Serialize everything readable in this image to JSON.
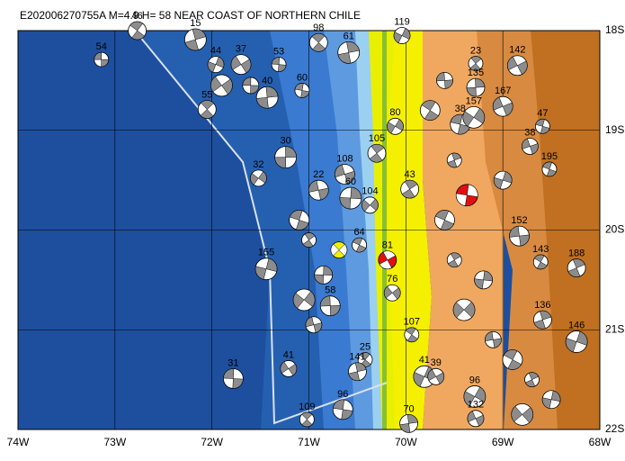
{
  "map": {
    "title": "E202006270755A  M=4.9  H= 58  NEAR COAST OF NORTHERN CHILE",
    "xlim": [
      -74,
      -68
    ],
    "ylim": [
      -22,
      -18
    ],
    "xticks": [
      {
        "value": -74,
        "label": "74W"
      },
      {
        "value": -73,
        "label": "73W"
      },
      {
        "value": -72,
        "label": "72W"
      },
      {
        "value": -71,
        "label": "71W"
      },
      {
        "value": -70,
        "label": "70W"
      },
      {
        "value": -69,
        "label": "69W"
      },
      {
        "value": -68,
        "label": "68W"
      }
    ],
    "yticks": [
      {
        "value": -18,
        "label": "18S"
      },
      {
        "value": -19,
        "label": "19S"
      },
      {
        "value": -20,
        "label": "20S"
      },
      {
        "value": -21,
        "label": "21S"
      },
      {
        "value": -22,
        "label": "22S"
      }
    ],
    "events": [
      {
        "label": "54",
        "lon": -73.14,
        "lat": -18.29,
        "color": "#ffffff"
      },
      {
        "label": "46",
        "lon": -72.77,
        "lat": -18.0,
        "color": "#ffffff"
      },
      {
        "label": "15",
        "lon": -72.17,
        "lat": -18.09,
        "color": "#ffffff"
      },
      {
        "label": "44",
        "lon": -71.96,
        "lat": -18.34,
        "color": "#ffffff"
      },
      {
        "label": "37",
        "lon": -71.7,
        "lat": -18.34,
        "color": "#ffffff"
      },
      {
        "label": "53",
        "lon": -71.31,
        "lat": -18.34,
        "color": "#ffffff"
      },
      {
        "label": "98",
        "lon": -70.9,
        "lat": -18.12,
        "color": "#ffffff"
      },
      {
        "label": "61",
        "lon": -70.59,
        "lat": -18.22,
        "color": "#ffffff"
      },
      {
        "label": "119",
        "lon": -70.04,
        "lat": -18.05,
        "color": "#ffffff"
      },
      {
        "label": "142",
        "lon": -68.85,
        "lat": -18.35,
        "color": "#ffffff"
      },
      {
        "label": "60",
        "lon": -71.07,
        "lat": -18.6,
        "color": "#ffffff"
      },
      {
        "label": "55",
        "lon": -72.05,
        "lat": -18.79,
        "color": "#ffffff"
      },
      {
        "label": "40",
        "lon": -71.43,
        "lat": -18.67,
        "color": "#ffffff"
      },
      {
        "label": "80",
        "lon": -70.11,
        "lat": -18.96,
        "color": "#ffffff"
      },
      {
        "label": "167",
        "lon": -69.0,
        "lat": -18.76,
        "color": "#ffffff"
      },
      {
        "label": "47",
        "lon": -68.59,
        "lat": -18.96,
        "color": "#ffffff"
      },
      {
        "label": "105",
        "lon": -70.3,
        "lat": -19.23,
        "color": "#ffffff"
      },
      {
        "label": "30",
        "lon": -71.24,
        "lat": -19.27,
        "color": "#ffffff"
      },
      {
        "label": "32",
        "lon": -71.52,
        "lat": -19.48,
        "color": "#ffffff"
      },
      {
        "label": "108",
        "lon": -70.63,
        "lat": -19.44,
        "color": "#ffffff"
      },
      {
        "label": "195",
        "lon": -68.52,
        "lat": -19.39,
        "color": "#ffffff"
      },
      {
        "label": "43",
        "lon": -69.96,
        "lat": -19.59,
        "color": "#ffffff"
      },
      {
        "label": "60",
        "lon": -70.57,
        "lat": -19.68,
        "color": "#ffffff"
      },
      {
        "label": "104",
        "lon": -70.37,
        "lat": -19.75,
        "color": "#ffffff"
      },
      {
        "label": "22",
        "lon": -70.9,
        "lat": -19.6,
        "color": "#ffffff"
      },
      {
        "label": "64",
        "lon": -70.48,
        "lat": -20.15,
        "color": "#ffffff"
      },
      {
        "label": "81",
        "lon": -70.19,
        "lat": -20.3,
        "color": "#e01010"
      },
      {
        "label": null,
        "lon": -69.37,
        "lat": -19.65,
        "color": "#e01010"
      },
      {
        "label": null,
        "lon": -70.69,
        "lat": -20.2,
        "color": "#f0f000"
      },
      {
        "label": "152",
        "lon": -68.83,
        "lat": -20.06,
        "color": "#ffffff"
      },
      {
        "label": "143",
        "lon": -68.61,
        "lat": -20.32,
        "color": "#ffffff"
      },
      {
        "label": "188",
        "lon": -68.24,
        "lat": -20.38,
        "color": "#ffffff"
      },
      {
        "label": "155",
        "lon": -71.44,
        "lat": -20.39,
        "color": "#ffffff"
      },
      {
        "label": "76",
        "lon": -70.14,
        "lat": -20.63,
        "color": "#ffffff"
      },
      {
        "label": "58",
        "lon": -70.78,
        "lat": -20.76,
        "color": "#ffffff"
      },
      {
        "label": "107",
        "lon": -69.94,
        "lat": -21.05,
        "color": "#ffffff"
      },
      {
        "label": "136",
        "lon": -68.59,
        "lat": -20.9,
        "color": "#ffffff"
      },
      {
        "label": "146",
        "lon": -68.24,
        "lat": -21.12,
        "color": "#ffffff"
      },
      {
        "label": "41",
        "lon": -71.21,
        "lat": -21.39,
        "color": "#ffffff"
      },
      {
        "label": "31",
        "lon": -71.78,
        "lat": -21.49,
        "color": "#ffffff"
      },
      {
        "label": "25",
        "lon": -70.42,
        "lat": -21.3,
        "color": "#ffffff"
      },
      {
        "label": "141",
        "lon": -70.5,
        "lat": -21.42,
        "color": "#ffffff"
      },
      {
        "label": "41",
        "lon": -69.81,
        "lat": -21.47,
        "color": "#ffffff"
      },
      {
        "label": "39",
        "lon": -69.69,
        "lat": -21.47,
        "color": "#ffffff"
      },
      {
        "label": "96",
        "lon": -70.65,
        "lat": -21.8,
        "color": "#ffffff"
      },
      {
        "label": "109",
        "lon": -71.02,
        "lat": -21.9,
        "color": "#ffffff"
      },
      {
        "label": "70",
        "lon": -69.97,
        "lat": -21.94,
        "color": "#ffffff"
      },
      {
        "label": "96",
        "lon": -69.29,
        "lat": -21.67,
        "color": "#ffffff"
      },
      {
        "label": "132",
        "lon": -69.28,
        "lat": -21.89,
        "color": "#ffffff"
      },
      {
        "label": "38",
        "lon": -69.44,
        "lat": -18.94,
        "color": "#ffffff"
      },
      {
        "label": "23",
        "lon": -69.28,
        "lat": -18.33,
        "color": "#ffffff"
      },
      {
        "label": "135",
        "lon": -69.28,
        "lat": -18.57,
        "color": "#ffffff"
      },
      {
        "label": "157",
        "lon": -69.3,
        "lat": -18.87,
        "color": "#ffffff"
      },
      {
        "label": "38",
        "lon": -68.72,
        "lat": -19.16,
        "color": "#ffffff"
      },
      {
        "label": null,
        "lon": -71.1,
        "lat": -19.9,
        "color": "#ffffff"
      },
      {
        "label": null,
        "lon": -71.0,
        "lat": -20.1,
        "color": "#ffffff"
      },
      {
        "label": null,
        "lon": -70.85,
        "lat": -20.45,
        "color": "#ffffff"
      },
      {
        "label": null,
        "lon": -71.05,
        "lat": -20.7,
        "color": "#ffffff"
      },
      {
        "label": null,
        "lon": -70.95,
        "lat": -20.95,
        "color": "#ffffff"
      },
      {
        "label": null,
        "lon": -69.6,
        "lat": -19.9,
        "color": "#ffffff"
      },
      {
        "label": null,
        "lon": -69.5,
        "lat": -20.3,
        "color": "#ffffff"
      },
      {
        "label": null,
        "lon": -69.2,
        "lat": -20.5,
        "color": "#ffffff"
      },
      {
        "label": null,
        "lon": -69.4,
        "lat": -20.8,
        "color": "#ffffff"
      },
      {
        "label": null,
        "lon": -69.1,
        "lat": -21.1,
        "color": "#ffffff"
      },
      {
        "label": null,
        "lon": -68.9,
        "lat": -21.3,
        "color": "#ffffff"
      },
      {
        "label": null,
        "lon": -68.7,
        "lat": -21.5,
        "color": "#ffffff"
      },
      {
        "label": null,
        "lon": -68.5,
        "lat": -21.7,
        "color": "#ffffff"
      },
      {
        "label": null,
        "lon": -68.8,
        "lat": -21.85,
        "color": "#ffffff"
      },
      {
        "label": null,
        "lon": -69.6,
        "lat": -18.5,
        "color": "#ffffff"
      },
      {
        "label": null,
        "lon": -69.75,
        "lat": -18.8,
        "color": "#ffffff"
      },
      {
        "label": null,
        "lon": -69.5,
        "lat": -19.3,
        "color": "#ffffff"
      },
      {
        "label": null,
        "lon": -69.0,
        "lat": -19.5,
        "color": "#ffffff"
      },
      {
        "label": null,
        "lon": -71.9,
        "lat": -18.55,
        "color": "#ffffff"
      },
      {
        "label": null,
        "lon": -71.6,
        "lat": -18.55,
        "color": "#ffffff"
      }
    ]
  }
}
